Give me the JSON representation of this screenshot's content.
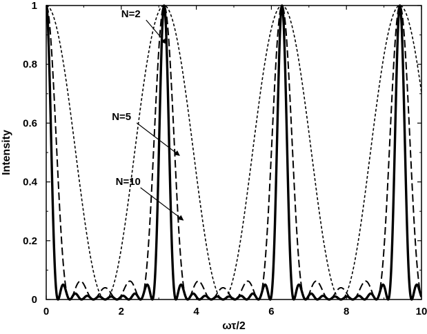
{
  "chart_data": {
    "type": "line",
    "xlabel": "ωτ/2",
    "ylabel": "Intensity",
    "xlim": [
      0,
      10
    ],
    "ylim": [
      0,
      1
    ],
    "xticks": [
      "0",
      "2",
      "4",
      "6",
      "8",
      "10"
    ],
    "yticks": [
      "0",
      "0.2",
      "0.4",
      "0.6",
      "0.8",
      "1"
    ],
    "grid": false,
    "legend": "none",
    "series": [
      {
        "name": "N=2",
        "function": "cos2(x)",
        "style": "short-dash",
        "color": "#000000"
      },
      {
        "name": "N=5",
        "function": "multi-slit intensity, N=5",
        "style": "long-dash",
        "color": "#000000"
      },
      {
        "name": "N=10",
        "function": "multi-slit intensity, N=10",
        "style": "solid",
        "color": "#000000"
      }
    ],
    "annotations": [
      {
        "text": "N=2",
        "x": 2.0,
        "y": 0.96,
        "arrow_to": [
          3.2,
          0.87
        ]
      },
      {
        "text": "N=5",
        "x": 1.75,
        "y": 0.61,
        "arrow_to": [
          3.55,
          0.49
        ]
      },
      {
        "text": "N=10",
        "x": 1.85,
        "y": 0.39,
        "arrow_to": [
          3.65,
          0.27
        ]
      }
    ]
  }
}
